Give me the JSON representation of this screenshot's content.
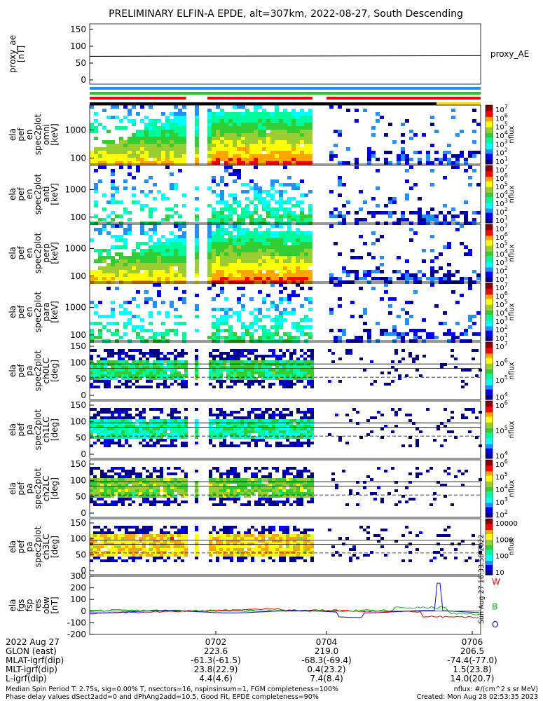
{
  "title": "PRELIMINARY ELFIN-A EPDE, alt=307km, 2022-08-27, South Descending",
  "chart_data": {
    "type": "heatmap",
    "panels": [
      {
        "id": "ae",
        "ylabel_lines": [
          "proxy_ae",
          "[nT]"
        ],
        "yticks": [
          "150",
          "100",
          "50",
          "0"
        ],
        "right_label": "proxy_AE",
        "series_value": 70
      },
      {
        "id": "bars"
      },
      {
        "id": "en1",
        "ylabel_lines": [
          "ela",
          "pef",
          "en",
          "spec2plot",
          "omni",
          "[keV]"
        ],
        "yticks": [
          "1000",
          "100"
        ],
        "cb_label": "nflux",
        "cb_ticks": [
          "10^7",
          "10^6",
          "10^5",
          "10^4",
          "10^3",
          "10^2",
          "10^1"
        ]
      },
      {
        "id": "en2",
        "ylabel_lines": [
          "ela",
          "pef",
          "en",
          "spec2plot",
          "anti",
          "[keV]"
        ],
        "yticks": [
          "1000",
          "100"
        ],
        "cb_label": "nflux",
        "cb_ticks": [
          "10^7",
          "10^6",
          "10^5",
          "10^4",
          "10^3",
          "10^2",
          "10^1"
        ]
      },
      {
        "id": "en3",
        "ylabel_lines": [
          "ela",
          "pef",
          "en",
          "spec2plot",
          "perp",
          "[keV]"
        ],
        "yticks": [
          "1000",
          "100"
        ],
        "cb_label": "nflux",
        "cb_ticks": [
          "10^7",
          "10^6",
          "10^5",
          "10^4",
          "10^3",
          "10^2",
          "10^1"
        ]
      },
      {
        "id": "en4",
        "ylabel_lines": [
          "ela",
          "pef",
          "en",
          "spec2plot",
          "para",
          "[keV]"
        ],
        "yticks": [
          "1000",
          "100"
        ],
        "cb_label": "nflux",
        "cb_ticks": [
          "10^7",
          "10^6",
          "10^5",
          "10^4",
          "10^3",
          "10^2",
          "10^1"
        ]
      },
      {
        "id": "pa0",
        "ylabel_lines": [
          "ela",
          "pef",
          "pa",
          "spec2plot",
          "ch0LC",
          "[deg]"
        ],
        "yticks": [
          "150",
          "100",
          "50",
          "0"
        ],
        "cb_label": "nflux",
        "cb_ticks": [
          "10^7",
          "10^6",
          "10^5",
          "10^4"
        ]
      },
      {
        "id": "pa1",
        "ylabel_lines": [
          "ela",
          "pef",
          "pa",
          "spec2plot",
          "ch1LC",
          "[deg]"
        ],
        "yticks": [
          "150",
          "100",
          "50",
          "0"
        ],
        "cb_label": "nflux",
        "cb_ticks": [
          "10^6",
          "10^5",
          "10^4"
        ]
      },
      {
        "id": "pa2",
        "ylabel_lines": [
          "ela",
          "pef",
          "pa",
          "spec2plot",
          "ch2LC",
          "[deg]"
        ],
        "yticks": [
          "150",
          "100",
          "50",
          "0"
        ],
        "cb_label": "nflux",
        "cb_ticks": [
          "10^6",
          "10^5",
          "10^4",
          "10^3",
          "10^2"
        ]
      },
      {
        "id": "pa3",
        "ylabel_lines": [
          "ela",
          "pef",
          "pa",
          "spec2plot",
          "ch3LC",
          "[deg]"
        ],
        "yticks": [
          "150",
          "100",
          "50",
          "0"
        ],
        "cb_label": "nflux",
        "cb_ticks": [
          "10000",
          "1000",
          "100",
          "10"
        ]
      },
      {
        "id": "fgs",
        "ylabel_lines": [
          "ela",
          "fgs",
          "fsp",
          "res",
          "obw",
          "[nT]"
        ],
        "yticks": [
          "300",
          "200",
          "100",
          "0",
          "-100",
          "-200"
        ],
        "legend": [
          "W",
          "B",
          "O"
        ],
        "side_note": "Sun Aug 27 16:33:58 2022"
      }
    ],
    "x_tick_labels": [
      "0702",
      "0704",
      "0706"
    ],
    "footer_rows": [
      {
        "label": "2022 Aug 27",
        "values": [
          "",
          "",
          ""
        ]
      },
      {
        "label": "GLON (east)",
        "values": [
          "223.6",
          "219.0",
          "206.5"
        ]
      },
      {
        "label": "MLAT-igrf(dip)",
        "values": [
          "-61.3(-61.5)",
          "-68.3(-69.4)",
          "-74.4(-77.0)"
        ]
      },
      {
        "label": "MLT-igrf(dip)",
        "values": [
          "23.8(22.9)",
          "0.4(23.2)",
          "1.5(23.8)"
        ]
      },
      {
        "label": "L-igrf(dip)",
        "values": [
          "4.4(4.6)",
          "7.4(8.4)",
          "14.0(20.7)"
        ]
      }
    ],
    "notes_left": [
      "Median Spin Period T: 2.75s, sig=0.00% T, nsectors=16, nspinsinsum=1, FGM completeness=100%",
      "Phase delay values dSect2add=0 and dPhAng2add=10.5, Good Fit, EPDE completeness=90%"
    ],
    "notes_right": [
      "nflux: #/(cm^2 s sr MeV)",
      "Created: Mon Aug 28 02:53:35 2023"
    ],
    "colors": {
      "W": "#ff0000",
      "B": "#00cc00",
      "O": "#0000ff",
      "bar_blue": "#1e90ff",
      "bar_green": "#22cc22",
      "bar_red": "#ff0000",
      "bar_yellow": "#ffd700"
    }
  }
}
